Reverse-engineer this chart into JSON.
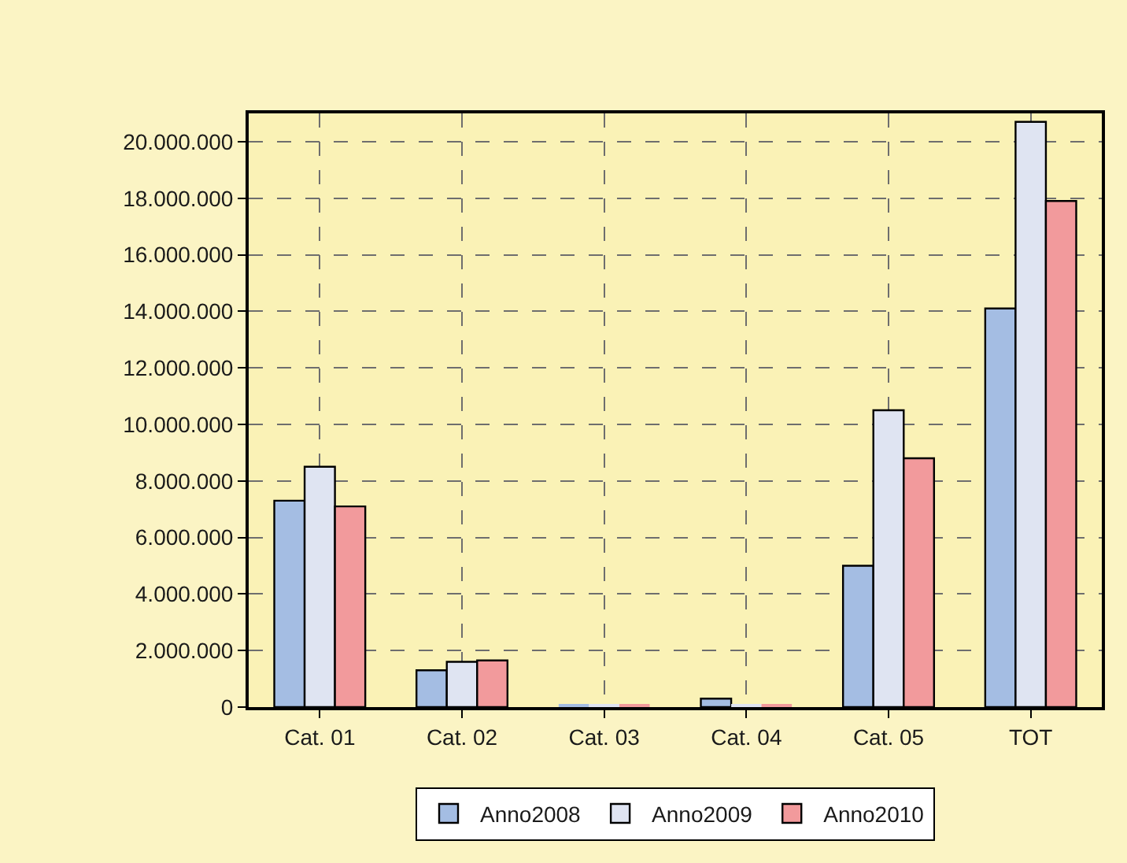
{
  "chart_data": {
    "type": "bar",
    "categories": [
      "Cat. 01",
      "Cat. 02",
      "Cat. 03",
      "Cat. 04",
      "Cat. 05",
      "TOT"
    ],
    "series": [
      {
        "name": "Anno2008",
        "color": "#a4bde3",
        "values": [
          7300000,
          1300000,
          100000,
          300000,
          5000000,
          14100000
        ]
      },
      {
        "name": "Anno2009",
        "color": "#dfe4f2",
        "values": [
          8500000,
          1600000,
          100000,
          100000,
          10500000,
          20700000
        ]
      },
      {
        "name": "Anno2010",
        "color": "#f29a9c",
        "values": [
          7100000,
          1650000,
          100000,
          100000,
          8800000,
          17900000
        ]
      }
    ],
    "ylim": [
      0,
      21000000
    ],
    "yticks": [
      0,
      {
        "value": 2000000,
        "label": "2.000.000"
      },
      {
        "value": 4000000,
        "label": "4.000.000"
      },
      {
        "value": 6000000,
        "label": "6.000.000"
      },
      {
        "value": 8000000,
        "label": "8.000.000"
      },
      {
        "value": 10000000,
        "label": "10.000.000"
      },
      {
        "value": 12000000,
        "label": "12.000.000"
      },
      {
        "value": 14000000,
        "label": "14.000.000"
      },
      {
        "value": 16000000,
        "label": "16.000.000"
      },
      {
        "value": 18000000,
        "label": "18.000.000"
      },
      {
        "value": 20000000,
        "label": "20.000.000"
      }
    ],
    "grid": true,
    "legend": "bottom"
  }
}
